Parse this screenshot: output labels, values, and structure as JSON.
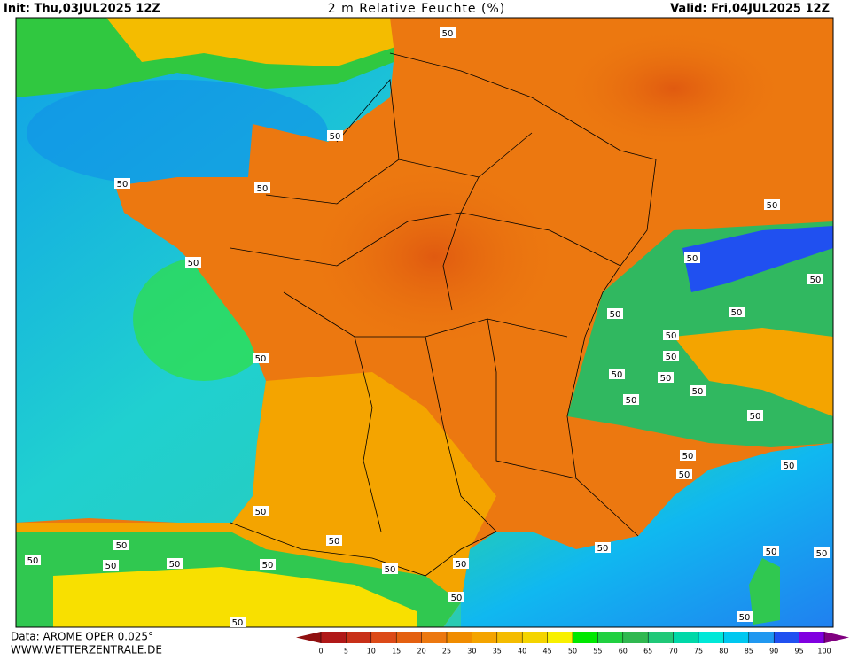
{
  "header": {
    "init": "Init: Thu,03JUL2025 12Z",
    "title": "2 m Relative Feuchte (%)",
    "valid": "Valid: Fri,04JUL2025 12Z"
  },
  "footer": {
    "source": "Data: AROME OPER 0.025°",
    "website": "WWW.WETTERZENTRALE.DE"
  },
  "colorbar": {
    "ticks": [
      0,
      5,
      10,
      15,
      20,
      25,
      30,
      35,
      40,
      45,
      50,
      55,
      60,
      65,
      70,
      75,
      80,
      85,
      90,
      95,
      100
    ],
    "colors": [
      "#b01818",
      "#c83018",
      "#dc4a18",
      "#e46010",
      "#ec7810",
      "#f08c00",
      "#f4a400",
      "#f4bc00",
      "#f4d400",
      "#f8f000",
      "#00e800",
      "#20d040",
      "#30b850",
      "#20c878",
      "#00d8a8",
      "#00e8d8",
      "#00c8f0",
      "#2098f0",
      "#2050f0",
      "#8000e0"
    ],
    "under_color": "#901010",
    "over_color": "#800080"
  },
  "contour_labels": [
    "50",
    "50",
    "50",
    "50",
    "50",
    "50",
    "50",
    "50",
    "50",
    "50",
    "50",
    "50",
    "50",
    "50",
    "50",
    "50",
    "50",
    "50",
    "50",
    "50",
    "50",
    "50",
    "50",
    "50",
    "50",
    "50",
    "50",
    "50",
    "50",
    "50",
    "50",
    "50",
    "50",
    "50",
    "50",
    "50"
  ]
}
